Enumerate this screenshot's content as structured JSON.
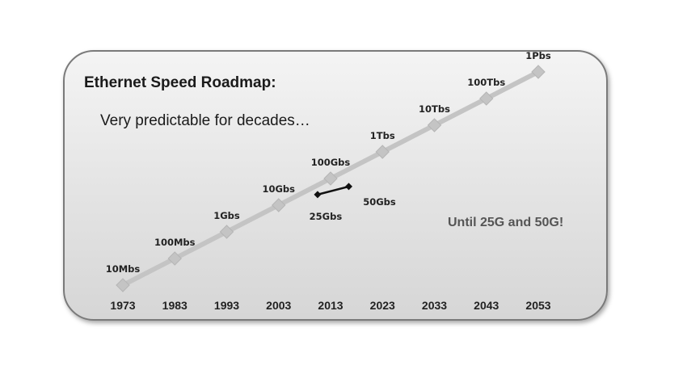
{
  "chart_data": {
    "type": "line",
    "title": "Ethernet Speed Roadmap:",
    "subtitle": "Very predictable for decades…",
    "annotation": "Until 25G and 50G!",
    "x": [
      1973,
      1983,
      1993,
      2003,
      2013,
      2023,
      2033,
      2043,
      2053
    ],
    "x_tick_labels": [
      "1973",
      "1983",
      "1993",
      "2003",
      "2013",
      "2023",
      "2033",
      "2043",
      "2053"
    ],
    "y_scale": "log",
    "series": [
      {
        "role": "roadmap",
        "color": "#c4c4c4",
        "points": [
          {
            "x": 1973,
            "y_bps": 10000000.0,
            "label": "10Mbs"
          },
          {
            "x": 1983,
            "y_bps": 100000000.0,
            "label": "100Mbs"
          },
          {
            "x": 1993,
            "y_bps": 1000000000.0,
            "label": "1Gbs"
          },
          {
            "x": 2003,
            "y_bps": 10000000000.0,
            "label": "10Gbs"
          },
          {
            "x": 2013,
            "y_bps": 100000000000.0,
            "label": "100Gbs"
          },
          {
            "x": 2023,
            "y_bps": 1000000000000.0,
            "label": "1Tbs"
          },
          {
            "x": 2033,
            "y_bps": 10000000000000.0,
            "label": "10Tbs"
          },
          {
            "x": 2043,
            "y_bps": 100000000000000.0,
            "label": "100Tbs"
          },
          {
            "x": 2053,
            "y_bps": 1000000000000000.0,
            "label": "1Pbs"
          }
        ]
      },
      {
        "role": "exception",
        "color": "#111111",
        "points": [
          {
            "x": 2010.5,
            "y_bps": 25000000000.0,
            "label": "25Gbs"
          },
          {
            "x": 2016.5,
            "y_bps": 50000000000.0,
            "label": "50Gbs"
          }
        ]
      }
    ],
    "grid": false,
    "legend": "none"
  }
}
